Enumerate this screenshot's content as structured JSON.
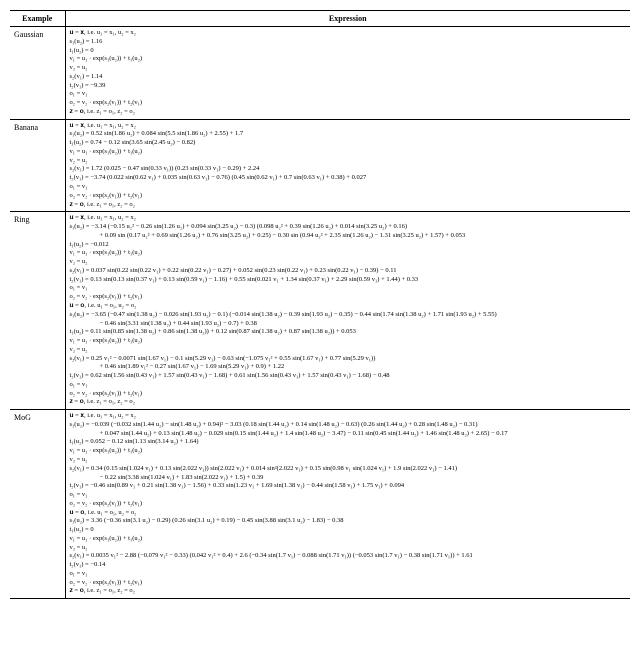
{
  "table": {
    "columns": [
      "Example",
      "Expression"
    ],
    "rows": [
      {
        "example": "Gaussian",
        "lines": [
          "𝐮 = 𝐱, i.e. u₁ = x₁, u₂ = x₂",
          "s₁(u₂) = 1.16",
          "t₁(u₂) = 0",
          "v₁ = u₁ · exp(s₁(u₂)) + t₁(u₂)",
          "v₂ = u₂",
          "s₂(v₁) = 1.14",
          "t₂(v₁) = −9.39",
          "o₁ = v₁",
          "o₂ = v₂ · exp(s₂(v₁)) + t₂(v₁)",
          "𝐳 = 𝐨, i.e. z₁ = o₁, z₂ = o₂"
        ]
      },
      {
        "example": "Banana",
        "lines": [
          "𝐮 = 𝐱, i.e. u₁ = x₁, u₂ = x₂",
          "s₁(u₂) = 0.52 sin(1.86 u₂) + 0.084 sin(5.5 sin(1.86 u₂) + 2.55) + 1.7",
          "t₁(u₂) = 0.74 − 0.12 sin(3.65 sin(2.45 u₂) − 0.82)",
          "v₁ = u₁ · exp(s₁(u₂)) + t₁(u₂)",
          "v₂ = u₂",
          "s₂(v₁) = 1.72 (0.025 − 0.47 sin(0.33 v₁)) (0.23 sin(0.33 v₁) − 0.29) + 2.24",
          "t₂(v₁) = −3.74 (0.022 sin(0.62 v₁) + 0.035 sin(0.63 v₁) − 0.76) (0.45 sin(0.62 v₁) + 0.7 sin(0.63 v₁) + 0.38) + 0.027",
          "o₁ = v₁",
          "o₂ = v₂ · exp(s₂(v₁)) + t₂(v₁)",
          "𝐳 = 𝐨, i.e. z₁ = o₁, z₂ = o₂"
        ]
      },
      {
        "example": "Ring",
        "lines": [
          "𝐮 = 𝐱, i.e. u₁ = x₁, u₂ = x₂",
          "s₁(u₂) = −3.14 (−0.15 u₂² − 0.26 sin(1.26 u₂) + 0.094 sin(3.25 u₂) − 0.3) (0.098 u₂² + 0.39 sin(1.26 u₂) + 0.014 sin(3.25 u₂) + 0.16)",
          "              + 0.09 sin (0.17 u₂² + 0.69 sin(1.26 u₂) + 0.76 sin(3.25 u₂) + 0.25) − 0.30 sin (0.94 u₂² + 2.35 sin(1.26 u₂) − 1.31 sin(3.25 u₂) + 1.57) + 0.053",
          "t₁(u₂) = −0.012",
          "v₁ = u₁ · exp(s₁(u₂)) + t₁(u₂)",
          "v₂ = u₂",
          "s₂(v₁) = 0.037 sin(0.22 sin(0.22 v₁) + 0.22 sin(0.22 v₁) − 0.27) + 0.052 sin(0.23 sin(0.22 v₁) + 0.23 sin(0.22 v₁) − 0.39) − 0.11",
          "t₂(v₁) = 0.13 sin(0.13 sin(0.37 v₁) + 0.13 sin(0.59 v₁) − 1.16) + 0.55 sin(0.021 v₁ + 1.34 sin(0.37 v₁) + 2.29 sin(0.59 v₁) + 1.44) + 0.33",
          "o₁ = v₁",
          "o₂ = v₂ · exp(s₂(v₁)) + t₂(v₁)",
          "𝐮 = 𝐨, i.e. u₁ = o₁, u₂ = o₂",
          "s₁(u₂) = −3.65 (−0.47 sin(1.38 u₂) − 0.026 sin(1.93 u₂) − 0.1) (−0.014 sin(1.38 u₂) − 0.39 sin(1.93 u₂) − 0.35) − 0.44 sin(1.74 sin(1.38 u₂) + 1.71 sin(1.93 u₂) + 5.55)",
          "              − 0.46 sin(3.31 sin(1.38 u₂) + 0.44 sin(1.93 u₂) − 0.7) + 0.38",
          "t₁(u₂) = 0.11 sin(0.85 sin(1.38 u₂) + 0.86 sin(1.38 u₂)) + 0.12 sin(0.87 sin(1.38 u₂) + 0.87 sin(1.38 u₂)) + 0.053",
          "v₁ = u₁ · exp(s₁(u₂)) + t₁(u₂)",
          "v₂ = u₂",
          "s₂(v₁) = 0.25 v₁² − 0.0071 sin(1.67 v₁) − 0.1 sin(5.29 v₁) − 0.63 sin(−1.075 v₁² + 0.55 sin(1.67 v₁) + 0.77 sin(5.29 v₁))",
          "              + 0.46 sin(1.89 v₁² − 0.27 sin(1.67 v₁) − 1.69 sin(5.29 v₁) + 0.9) + 1.22",
          "t₂(v₁) = 0.62 sin(1.56 sin(0.43 v₁) + 1.57 sin(0.43 v₁) − 1.68) + 0.61 sin(1.56 sin(0.43 v₁) + 1.57 sin(0.43 v₁) − 1.68) − 0.48",
          "o₁ = v₁",
          "o₂ = v₂ · exp(s₂(v₁)) + t₂(v₁)",
          "𝐳 = 𝐨, i.e. z₁ = o₁, z₂ = o₂"
        ]
      },
      {
        "example": "MoG",
        "lines": [
          "𝐮 = 𝐱, i.e. u₁ = x₁, u₂ = x₂",
          "s₁(u₂) = −0.039 (−0.032 sin(1.44 u₂) − sin(1.48 u₂) + 0.94)² − 3.03 (0.18 sin(1.44 u₂) + 0.14 sin(1.48 u₂) − 0.63) (0.26 sin(1.44 u₂) + 0.28 sin(1.48 u₂) − 0.31)",
          "              + 0.047 sin(1.44 u₂) + 0.13 sin(1.48 u₂) − 0.029 sin(0.15 sin(1.44 u₂) + 1.4 sin(1.48 u₂) − 3.47) − 0.11 sin(0.45 sin(1.44 u₂) + 1.46 sin(1.48 u₂) + 2.65) − 0.17",
          "t₁(u₂) = 0.052 − 0.12 sin(1.13 sin(3.14 u₂) + 1.64)",
          "v₁ = u₁ · exp(s₁(u₂)) + t₁(u₂)",
          "v₂ = u₂",
          "s₂(v₁) = 0.34 (0.15 sin(1.024 v₁) + 0.13 sin(2.022 v₁)) sin(2.022 v₁) + 0.014 sin²(2.022 v₁) + 0.15 sin(0.98 v₁ sin(1.024 v₁) + 1.9 sin(2.022 v₁) − 1.41)",
          "              − 0.22 sin(3.38 sin(1.024 v₁) + 1.83 sin(2.022 v₁) + 1.5) + 0.39",
          "t₂(v₁) = −0.46 sin(0.89 v₁ + 0.21 sin(1.38 v₁) − 1.56) + 0.33 sin(1.23 v₁ + 1.69 sin(1.38 v₁) − 0.44 sin(1.58 v₁) + 1.75 v₁) + 0.094",
          "o₁ = v₁",
          "o₂ = v₂ · exp(s₂(v₁)) + t₂(v₁)",
          "𝐮 = 𝐨, i.e. u₁ = o₁, u₂ = o₂",
          "s₁(u₂) = 3.36 (−0.36 sin(3.1 u₂) − 0.29) (0.26 sin(3.1 u₂) + 0.19) − 0.45 sin(3.88 sin(3.1 u₂) − 1.83) − 0.38",
          "t₁(u₂) = 0",
          "v₁ = u₁ · exp(s₁(u₂)) + t₁(u₂)",
          "v₂ = u₂",
          "s₂(v₁) = 0.0035 v₁² − 2.88 (−0.079 v₁² − 0.33) (0.042 v₁² + 0.4) + 2.6 (−0.34 sin(1.7 v₁) − 0.088 sin(1.71 v₁)) (−0.053 sin(1.7 v₁) − 0.38 sin(1.71 v₁)) + 1.61",
          "t₂(v₁) = −0.14",
          "o₁ = v₁",
          "o₂ = v₂ · exp(s₂(v₁)) + t₂(v₁)",
          "𝐳 = 𝐨, i.e. z₁ = o₁, z₂ = o₂"
        ]
      }
    ]
  }
}
